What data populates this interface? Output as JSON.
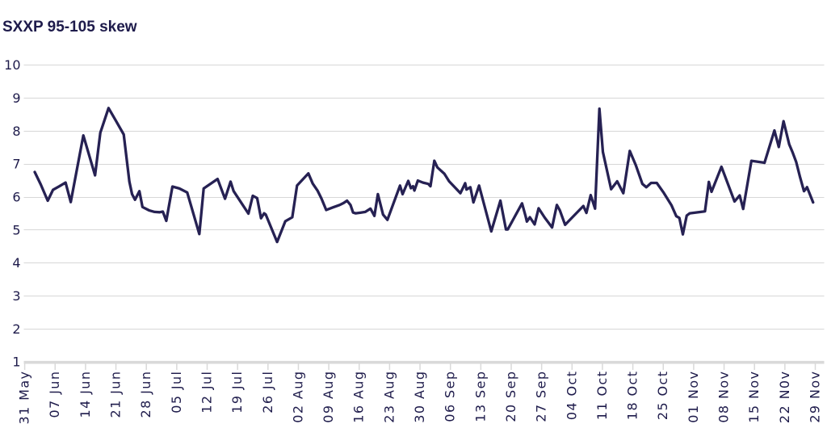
{
  "title": "SXXP 95-105 skew",
  "colors": {
    "background": "#ffffff",
    "title_text": "#1e1b4b",
    "axis_text": "#1e1b4b",
    "line": "#262153",
    "gridline": "#d7d7d7",
    "axis_line": "#d9d9d9",
    "tick": "#d9d9d9"
  },
  "chart_data": {
    "type": "line",
    "title": "SXXP 95-105 skew",
    "xlabel": "",
    "ylabel": "",
    "ylim": [
      1,
      10
    ],
    "yticks": [
      1,
      2,
      3,
      4,
      5,
      6,
      7,
      8,
      9,
      10
    ],
    "grid": "horizontal",
    "legend": "none",
    "x_unit": "days since 31 May",
    "x_tick_days": [
      0,
      7,
      14,
      21,
      28,
      35,
      42,
      49,
      56,
      63,
      70,
      77,
      84,
      91,
      98,
      105,
      112,
      119,
      126,
      133,
      140,
      147,
      154,
      161,
      168,
      175,
      182
    ],
    "x_tick_labels": [
      "31 May",
      "07 Jun",
      "14 Jun",
      "21 Jun",
      "28 Jun",
      "05 Jul",
      "12 Jul",
      "19 Jul",
      "26 Jul",
      "02 Aug",
      "09 Aug",
      "16 Aug",
      "23 Aug",
      "30 Aug",
      "06 Sep",
      "13 Sep",
      "20 Sep",
      "27 Sep",
      "04 Oct",
      "11 Oct",
      "18 Oct",
      "25 Oct",
      "01 Nov",
      "08 Nov",
      "15 Nov",
      "22 N0v",
      "29 Nov"
    ],
    "series": [
      {
        "name": "SXXP 95-105 skew",
        "points": [
          [
            2.3,
            6.76
          ],
          [
            3.7,
            6.38
          ],
          [
            5.3,
            5.89
          ],
          [
            6.5,
            6.22
          ],
          [
            8.0,
            6.33
          ],
          [
            9.4,
            6.44
          ],
          [
            10.6,
            5.85
          ],
          [
            12.1,
            6.9
          ],
          [
            13.5,
            7.87
          ],
          [
            16.2,
            6.66
          ],
          [
            17.4,
            7.95
          ],
          [
            19.3,
            8.7
          ],
          [
            21.0,
            8.31
          ],
          [
            22.8,
            7.9
          ],
          [
            24.1,
            6.47
          ],
          [
            24.7,
            6.09
          ],
          [
            25.4,
            5.92
          ],
          [
            26.4,
            6.18
          ],
          [
            27.1,
            5.7
          ],
          [
            28.6,
            5.6
          ],
          [
            29.9,
            5.55
          ],
          [
            31.1,
            5.54
          ],
          [
            31.8,
            5.56
          ],
          [
            32.6,
            5.28
          ],
          [
            34.0,
            6.32
          ],
          [
            35.6,
            6.26
          ],
          [
            37.4,
            6.14
          ],
          [
            40.2,
            4.88
          ],
          [
            41.2,
            6.26
          ],
          [
            44.4,
            6.55
          ],
          [
            46.1,
            5.95
          ],
          [
            47.4,
            6.47
          ],
          [
            48.1,
            6.18
          ],
          [
            51.5,
            5.5
          ],
          [
            52.5,
            6.04
          ],
          [
            53.5,
            5.97
          ],
          [
            54.4,
            5.36
          ],
          [
            55.1,
            5.51
          ],
          [
            55.5,
            5.47
          ],
          [
            58.1,
            4.64
          ],
          [
            60.0,
            5.27
          ],
          [
            61.6,
            5.39
          ],
          [
            62.7,
            6.35
          ],
          [
            65.3,
            6.72
          ],
          [
            66.3,
            6.41
          ],
          [
            67.4,
            6.2
          ],
          [
            68.3,
            5.96
          ],
          [
            69.4,
            5.61
          ],
          [
            71.0,
            5.69
          ],
          [
            72.5,
            5.76
          ],
          [
            73.4,
            5.82
          ],
          [
            74.2,
            5.89
          ],
          [
            75.0,
            5.76
          ],
          [
            75.6,
            5.53
          ],
          [
            76.2,
            5.51
          ],
          [
            77.4,
            5.53
          ],
          [
            78.4,
            5.55
          ],
          [
            79.6,
            5.65
          ],
          [
            80.5,
            5.43
          ],
          [
            81.3,
            6.09
          ],
          [
            82.5,
            5.47
          ],
          [
            83.5,
            5.31
          ],
          [
            86.4,
            6.35
          ],
          [
            87.0,
            6.09
          ],
          [
            88.3,
            6.49
          ],
          [
            88.9,
            6.27
          ],
          [
            89.4,
            6.33
          ],
          [
            89.7,
            6.2
          ],
          [
            90.5,
            6.5
          ],
          [
            91.7,
            6.44
          ],
          [
            92.9,
            6.4
          ],
          [
            93.4,
            6.33
          ],
          [
            94.3,
            7.1
          ],
          [
            95.0,
            6.9
          ],
          [
            96.6,
            6.71
          ],
          [
            97.7,
            6.48
          ],
          [
            100.3,
            6.12
          ],
          [
            101.4,
            6.42
          ],
          [
            101.7,
            6.23
          ],
          [
            102.6,
            6.3
          ],
          [
            103.3,
            5.84
          ],
          [
            104.6,
            6.35
          ],
          [
            107.4,
            4.96
          ],
          [
            109.5,
            5.89
          ],
          [
            110.8,
            5.02
          ],
          [
            111.2,
            5.02
          ],
          [
            114.5,
            5.81
          ],
          [
            115.3,
            5.42
          ],
          [
            115.6,
            5.26
          ],
          [
            116.3,
            5.39
          ],
          [
            117.4,
            5.17
          ],
          [
            118.3,
            5.66
          ],
          [
            119.7,
            5.38
          ],
          [
            121.4,
            5.08
          ],
          [
            122.5,
            5.76
          ],
          [
            123.2,
            5.6
          ],
          [
            124.4,
            5.16
          ],
          [
            125.3,
            5.28
          ],
          [
            128.6,
            5.73
          ],
          [
            129.3,
            5.52
          ],
          [
            130.3,
            6.06
          ],
          [
            131.3,
            5.65
          ],
          [
            132.3,
            8.68
          ],
          [
            133.1,
            7.37
          ],
          [
            135.0,
            6.24
          ],
          [
            136.4,
            6.48
          ],
          [
            137.8,
            6.12
          ],
          [
            139.3,
            7.4
          ],
          [
            140.7,
            6.96
          ],
          [
            142.2,
            6.4
          ],
          [
            143.1,
            6.3
          ],
          [
            144.2,
            6.43
          ],
          [
            145.5,
            6.43
          ],
          [
            147.0,
            6.15
          ],
          [
            148.9,
            5.75
          ],
          [
            150.0,
            5.42
          ],
          [
            150.7,
            5.37
          ],
          [
            151.5,
            4.87
          ],
          [
            152.4,
            5.44
          ],
          [
            153.1,
            5.51
          ],
          [
            156.2,
            5.56
          ],
          [
            156.6,
            5.57
          ],
          [
            157.5,
            6.46
          ],
          [
            158.1,
            6.16
          ],
          [
            160.4,
            6.92
          ],
          [
            163.4,
            5.87
          ],
          [
            164.6,
            6.05
          ],
          [
            165.4,
            5.64
          ],
          [
            167.3,
            7.1
          ],
          [
            170.0,
            7.05
          ],
          [
            170.3,
            7.04
          ],
          [
            172.6,
            8.02
          ],
          [
            173.6,
            7.52
          ],
          [
            174.7,
            8.3
          ],
          [
            176.0,
            7.6
          ],
          [
            176.8,
            7.35
          ],
          [
            177.6,
            7.07
          ],
          [
            178.5,
            6.6
          ],
          [
            179.4,
            6.18
          ],
          [
            180.1,
            6.3
          ],
          [
            181.5,
            5.84
          ]
        ]
      }
    ]
  }
}
